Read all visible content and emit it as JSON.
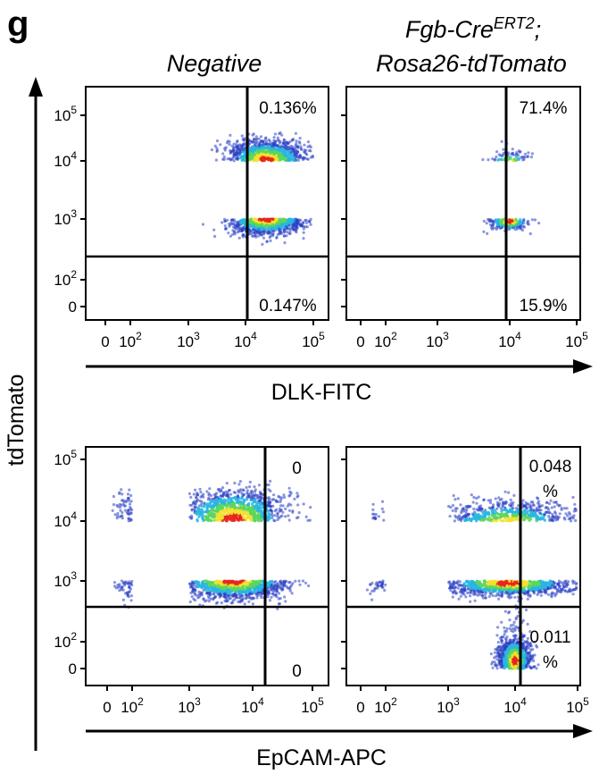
{
  "panel_letter": "g",
  "col_headers": {
    "negative": "Negative",
    "fgb_line1_base": "Fgb-Cre",
    "fgb_line1_sup": "ERT2",
    "fgb_line1_end": ";",
    "fgb_line2": "Rosa26-tdTomato"
  },
  "y_axis_label": "tdTomato",
  "x_labels": {
    "top": "DLK-FITC",
    "bottom": "EpCAM-APC"
  },
  "y_ticks": [
    {
      "base": "10",
      "exp": "5"
    },
    {
      "base": "10",
      "exp": "4"
    },
    {
      "base": "10",
      "exp": "3"
    },
    {
      "base": "10",
      "exp": "2"
    },
    {
      "base": "0",
      "exp": ""
    }
  ],
  "x_ticks": [
    {
      "base": "0",
      "exp": ""
    },
    {
      "base": "10",
      "exp": "2"
    },
    {
      "base": "10",
      "exp": "3"
    },
    {
      "base": "10",
      "exp": "4"
    },
    {
      "base": "10",
      "exp": "5"
    }
  ],
  "colors": {
    "low": "#2a3fc4",
    "mid1": "#29b6e0",
    "mid2": "#5cd65c",
    "mid3": "#f2e22e",
    "high": "#e8261c"
  },
  "chart_data": [
    {
      "type": "scatter",
      "subtype": "flow-cytometry-density",
      "row": "DLK-FITC",
      "column": "Negative",
      "x_scale": "biexponential",
      "y_scale": "biexponential",
      "quadrant_values": {
        "upper_right": "0.136%",
        "lower_right": "0.147%"
      },
      "populations": [
        {
          "x_center": 2000,
          "y_center": 100,
          "x_spread": 0.6,
          "y_spread": 0.25,
          "n": 1600
        }
      ]
    },
    {
      "type": "scatter",
      "subtype": "flow-cytometry-density",
      "row": "DLK-FITC",
      "column": "Fgb-CreERT2; Rosa26-tdTomato",
      "x_scale": "biexponential",
      "y_scale": "biexponential",
      "quadrant_values": {
        "upper_right": "71.4%",
        "lower_right": "15.9%"
      },
      "populations": [
        {
          "x_center": 20000,
          "y_center": 3000,
          "x_spread": 0.2,
          "y_spread": 1.0,
          "n": 1400
        },
        {
          "x_center": 1000,
          "y_center": 110,
          "x_spread": 0.3,
          "y_spread": 0.15,
          "n": 250
        }
      ]
    },
    {
      "type": "scatter",
      "subtype": "flow-cytometry-density",
      "row": "EpCAM-APC",
      "column": "Negative",
      "x_scale": "biexponential",
      "y_scale": "biexponential",
      "quadrant_values": {
        "upper_right": "0",
        "lower_right": "0"
      },
      "populations": [
        {
          "x_center": 500,
          "y_center": 100,
          "x_spread": 0.9,
          "y_spread": 0.3,
          "n": 1800
        }
      ]
    },
    {
      "type": "scatter",
      "subtype": "flow-cytometry-density",
      "row": "EpCAM-APC",
      "column": "Fgb-CreERT2; Rosa26-tdTomato",
      "x_scale": "biexponential",
      "y_scale": "biexponential",
      "quadrant_values": {
        "upper_right_line1": "0.048",
        "upper_right_line2": "%",
        "lower_right_line1": "0.011",
        "lower_right_line2": "%"
      },
      "populations": [
        {
          "x_center": 1000,
          "y_center": 5000,
          "x_spread": 0.25,
          "y_spread": 0.9,
          "n": 1300
        },
        {
          "x_center": 800,
          "y_center": 110,
          "x_spread": 1.0,
          "y_spread": 0.2,
          "n": 1500
        }
      ]
    }
  ]
}
